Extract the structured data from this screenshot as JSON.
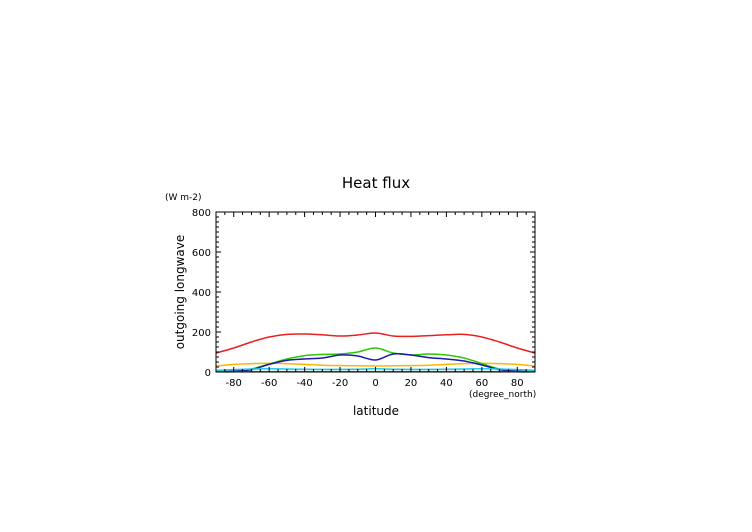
{
  "chart_data": {
    "type": "line",
    "title": "Heat flux",
    "xlabel": "latitude",
    "ylabel": "outgoing longwave",
    "xunits": "(degree_north)",
    "yunits": "(W m-2)",
    "xlim": [
      -90,
      90
    ],
    "ylim": [
      0,
      800
    ],
    "xticks": [
      -80,
      -60,
      -40,
      -20,
      0,
      20,
      40,
      60,
      80
    ],
    "yticks": [
      0,
      200,
      400,
      600,
      800
    ],
    "grid": false,
    "series": [
      {
        "color": "#e8211d",
        "x": [
          -90,
          -80,
          -70,
          -60,
          -50,
          -40,
          -30,
          -20,
          -10,
          0,
          10,
          20,
          30,
          40,
          50,
          60,
          70,
          80,
          90
        ],
        "values": [
          95,
          120,
          150,
          175,
          188,
          190,
          186,
          180,
          185,
          195,
          180,
          178,
          182,
          186,
          188,
          175,
          150,
          120,
          95
        ]
      },
      {
        "color": "#ffb400",
        "x": [
          -90,
          -80,
          -70,
          -60,
          -50,
          -40,
          -30,
          -20,
          -10,
          0,
          10,
          20,
          30,
          40,
          50,
          60,
          70,
          80,
          90
        ],
        "values": [
          30,
          38,
          42,
          44,
          42,
          38,
          34,
          32,
          31,
          30,
          31,
          32,
          34,
          38,
          42,
          44,
          42,
          38,
          30
        ]
      },
      {
        "color": "#2ec700",
        "x": [
          -90,
          -80,
          -70,
          -60,
          -50,
          -40,
          -30,
          -20,
          -10,
          0,
          10,
          20,
          30,
          40,
          50,
          60,
          70,
          80,
          90
        ],
        "values": [
          2,
          4,
          15,
          40,
          65,
          82,
          88,
          90,
          100,
          120,
          95,
          85,
          90,
          85,
          70,
          42,
          15,
          4,
          2
        ]
      },
      {
        "color": "#1a1ab0",
        "x": [
          -90,
          -80,
          -70,
          -60,
          -50,
          -40,
          -30,
          -20,
          -10,
          0,
          10,
          20,
          30,
          40,
          50,
          60,
          70,
          80,
          90
        ],
        "values": [
          2,
          4,
          12,
          38,
          58,
          65,
          70,
          85,
          80,
          60,
          90,
          85,
          72,
          65,
          55,
          35,
          12,
          4,
          2
        ]
      },
      {
        "color": "#20c8e6",
        "x": [
          -90,
          -80,
          -70,
          -60,
          -50,
          -40,
          -30,
          -20,
          -10,
          0,
          10,
          20,
          30,
          40,
          50,
          60,
          70,
          80,
          90
        ],
        "values": [
          8,
          12,
          15,
          16,
          15,
          14,
          13,
          13,
          14,
          16,
          14,
          13,
          13,
          14,
          15,
          16,
          15,
          12,
          8
        ]
      },
      {
        "color": "#00a08c",
        "x": [
          -90,
          -80,
          -70,
          -60,
          -50,
          -40,
          -30,
          -20,
          -10,
          0,
          10,
          20,
          30,
          40,
          50,
          60,
          70,
          80,
          90
        ],
        "values": [
          1,
          1,
          2,
          2,
          2,
          2,
          2,
          2,
          2,
          2,
          2,
          2,
          2,
          2,
          2,
          2,
          2,
          1,
          1
        ]
      }
    ]
  }
}
